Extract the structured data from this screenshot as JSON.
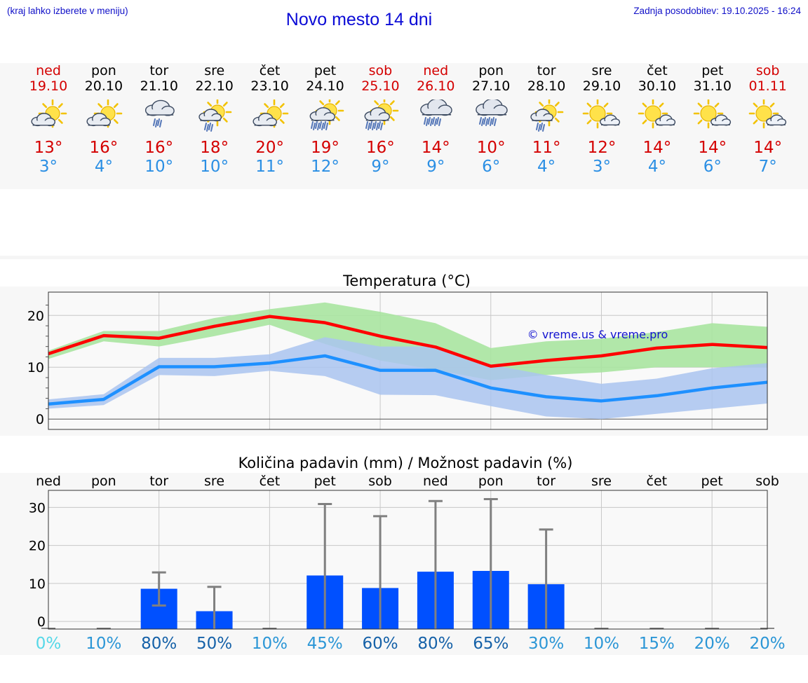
{
  "header": {
    "region_hint": "(kraj lahko izberete v meniju)",
    "title": "Novo mesto 14 dni",
    "last_update": "Zadnja posodobitev: 19.10.2025 - 16:24"
  },
  "days": [
    {
      "name": "ned",
      "date": "19.10",
      "weekend": true,
      "icon": "partly-cloudy-sun-icon",
      "max": "13°",
      "min": "3°"
    },
    {
      "name": "pon",
      "date": "20.10",
      "weekend": false,
      "icon": "partly-cloudy-sun-icon",
      "max": "16°",
      "min": "4°"
    },
    {
      "name": "tor",
      "date": "21.10",
      "weekend": false,
      "icon": "cloud-light-rain-icon",
      "max": "16°",
      "min": "10°"
    },
    {
      "name": "sre",
      "date": "22.10",
      "weekend": false,
      "icon": "sun-cloud-light-rain-icon",
      "max": "18°",
      "min": "10°"
    },
    {
      "name": "čet",
      "date": "23.10",
      "weekend": false,
      "icon": "partly-cloudy-sun-icon",
      "max": "20°",
      "min": "11°"
    },
    {
      "name": "pet",
      "date": "24.10",
      "weekend": false,
      "icon": "sun-cloud-rain-icon",
      "max": "19°",
      "min": "12°"
    },
    {
      "name": "sob",
      "date": "25.10",
      "weekend": true,
      "icon": "sun-cloud-rain-icon",
      "max": "16°",
      "min": "9°"
    },
    {
      "name": "ned",
      "date": "26.10",
      "weekend": true,
      "icon": "cloud-rain-icon",
      "max": "14°",
      "min": "9°"
    },
    {
      "name": "pon",
      "date": "27.10",
      "weekend": false,
      "icon": "cloud-rain-icon",
      "max": "10°",
      "min": "6°"
    },
    {
      "name": "tor",
      "date": "28.10",
      "weekend": false,
      "icon": "sun-cloud-light-rain-icon",
      "max": "11°",
      "min": "4°"
    },
    {
      "name": "sre",
      "date": "29.10",
      "weekend": false,
      "icon": "sun-small-cloud-icon",
      "max": "12°",
      "min": "3°"
    },
    {
      "name": "čet",
      "date": "30.10",
      "weekend": false,
      "icon": "sun-small-cloud-icon",
      "max": "14°",
      "min": "4°"
    },
    {
      "name": "pet",
      "date": "31.10",
      "weekend": false,
      "icon": "sun-small-cloud-icon",
      "max": "14°",
      "min": "6°"
    },
    {
      "name": "sob",
      "date": "01.11",
      "weekend": true,
      "icon": "sun-small-cloud-icon",
      "max": "14°",
      "min": "7°"
    }
  ],
  "colors": {
    "max_line": "#ff0000",
    "min_line": "#1e90ff",
    "max_band": "#a8e4a0",
    "min_band": "#aac4f0",
    "bar": "#0050ff",
    "error_bar": "#808080",
    "weekend_text": "#d40000"
  },
  "chart_data": [
    {
      "type": "line",
      "title": "Temperatura (°C)",
      "watermark": "© vreme.us & vreme.pro",
      "ylim": [
        -2,
        24.5
      ],
      "yticks": [
        0,
        10,
        20
      ],
      "grid": true,
      "x": [
        "19.10",
        "20.10",
        "21.10",
        "22.10",
        "23.10",
        "24.10",
        "25.10",
        "26.10",
        "27.10",
        "28.10",
        "29.10",
        "30.10",
        "31.10",
        "01.11"
      ],
      "series": [
        {
          "values": [
            12.6,
            16.1,
            15.6,
            17.9,
            19.8,
            18.6,
            16.0,
            13.9,
            10.2,
            11.3,
            12.2,
            13.7,
            14.4,
            13.8
          ],
          "band_low": [
            11.6,
            15.0,
            14.0,
            16.0,
            18.2,
            14.5,
            11.3,
            9.5,
            7.5,
            8.5,
            9.0,
            10.0,
            10.0,
            10.0
          ],
          "band_high": [
            13.2,
            17.0,
            17.0,
            19.5,
            21.2,
            22.5,
            20.7,
            18.5,
            13.7,
            15.0,
            15.5,
            16.8,
            18.5,
            17.8
          ]
        },
        {
          "values": [
            2.9,
            3.8,
            10.1,
            10.1,
            10.8,
            12.2,
            9.4,
            9.4,
            6.0,
            4.3,
            3.5,
            4.5,
            6.0,
            7.1
          ],
          "band_low": [
            2.0,
            2.7,
            8.5,
            8.3,
            9.3,
            8.3,
            4.7,
            4.6,
            2.5,
            0.5,
            0.0,
            1.0,
            2.0,
            3.0
          ],
          "band_high": [
            3.8,
            4.8,
            11.8,
            11.8,
            12.5,
            15.8,
            14.0,
            14.0,
            10.5,
            8.5,
            6.8,
            7.8,
            9.8,
            10.8
          ]
        }
      ]
    },
    {
      "type": "bar",
      "title": "Količina padavin (mm) / Možnost padavin (%)",
      "ylim": [
        -2,
        34.5
      ],
      "yticks": [
        0,
        10,
        20,
        30
      ],
      "grid": true,
      "categories": [
        "ned",
        "pon",
        "tor",
        "sre",
        "čet",
        "pet",
        "sob",
        "ned",
        "pon",
        "tor",
        "sre",
        "čet",
        "pet",
        "sob"
      ],
      "values": [
        0,
        0,
        8.6,
        2.7,
        0,
        12.1,
        8.8,
        13.1,
        13.3,
        9.8,
        0,
        0,
        0,
        0
      ],
      "error_low": [
        0,
        0,
        4.2,
        0,
        0,
        0,
        0,
        0,
        0,
        0,
        0,
        0,
        0,
        0
      ],
      "error_high": [
        0,
        0,
        12.9,
        9.1,
        0,
        30.9,
        27.7,
        31.7,
        32.2,
        24.2,
        0,
        0,
        0,
        0
      ],
      "probability": [
        "0%",
        "10%",
        "80%",
        "50%",
        "10%",
        "45%",
        "60%",
        "80%",
        "65%",
        "30%",
        "10%",
        "15%",
        "20%",
        "20%"
      ],
      "probability_colors": [
        "#55d8e8",
        "#2b96d6",
        "#1561a8",
        "#1561a8",
        "#2b96d6",
        "#2b96d6",
        "#1561a8",
        "#1561a8",
        "#1561a8",
        "#2b96d6",
        "#2b96d6",
        "#2b96d6",
        "#2b96d6",
        "#2b96d6"
      ]
    }
  ]
}
